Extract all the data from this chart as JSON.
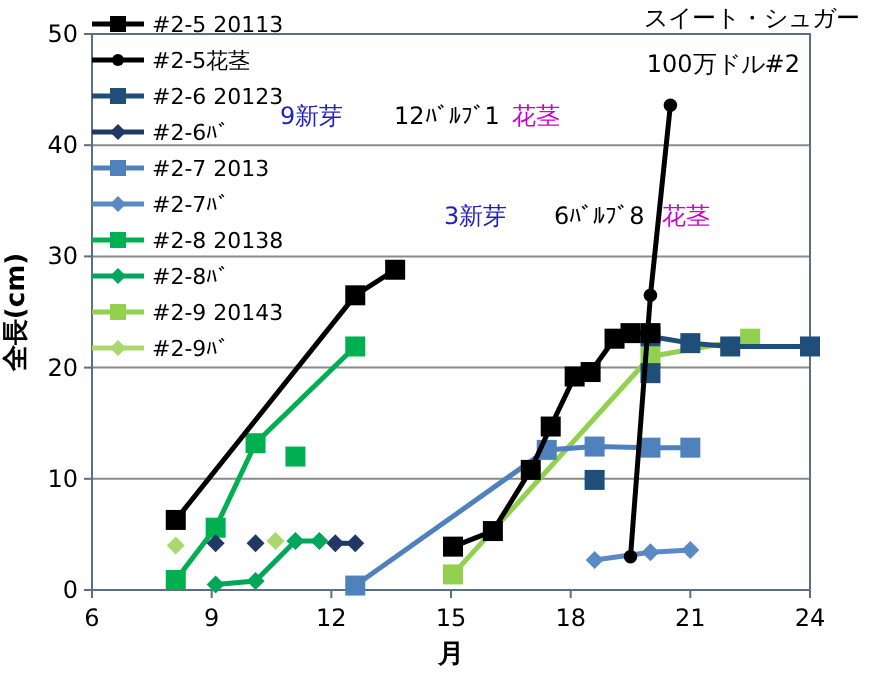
{
  "chart_data": {
    "type": "line",
    "title": "スイート・シュガー",
    "subtitle": "100万ドル#2",
    "xlabel": "月",
    "ylabel": "全長(cm)",
    "xlim": [
      6,
      24
    ],
    "xticks": [
      6,
      9,
      12,
      15,
      18,
      21,
      24
    ],
    "ylim": [
      0,
      50
    ],
    "yticks": [
      0,
      10,
      20,
      30,
      40,
      50
    ],
    "grid": "y",
    "legend": "top left",
    "line_style": "solid",
    "annotations": [
      "9新芽",
      "12ﾊﾞﾙﾌﾞ1",
      "花茎",
      "3新芽",
      "6ﾊﾞﾙﾌﾞ8",
      "花茎"
    ],
    "series": [
      {
        "name": "#2-5 20113",
        "color": "#000000",
        "marker": "square",
        "x": [
          8.1,
          12.6,
          13.6,
          null,
          15.05,
          16.05,
          17.0,
          17.5,
          18.1,
          18.5,
          19.1,
          19.5,
          20.0
        ],
        "values": [
          6.3,
          26.5,
          28.8,
          null,
          3.9,
          5.3,
          10.8,
          14.7,
          19.2,
          19.6,
          22.6,
          23.1,
          23.1
        ]
      },
      {
        "name": "#2-5花茎",
        "color": "#000000",
        "marker": "circle",
        "x": [
          19.5,
          20.0,
          20.5
        ],
        "values": [
          3.0,
          26.5,
          43.6
        ]
      },
      {
        "name": "#2-6 20123",
        "color": "#1f4e79",
        "marker": "square",
        "x": [
          18.6,
          null,
          20.0,
          null,
          20.0,
          21.0,
          22.0,
          24.0
        ],
        "values": [
          9.9,
          null,
          19.5,
          null,
          22.8,
          22.2,
          21.9,
          21.9
        ]
      },
      {
        "name": "#2-6ﾊﾞ",
        "color": "#203864",
        "marker": "diamond",
        "x": [
          9.1,
          null,
          10.1,
          null,
          12.1,
          12.6
        ],
        "values": [
          4.2,
          null,
          4.2,
          null,
          4.2,
          4.2
        ]
      },
      {
        "name": "#2-7 2013",
        "color": "#4f81bd",
        "marker": "square",
        "x": [
          12.6,
          17.4,
          18.6,
          20.0,
          21.0
        ],
        "values": [
          0.4,
          12.6,
          12.9,
          12.8,
          12.8
        ]
      },
      {
        "name": "#2-7ﾊﾞ",
        "color": "#5a8ac6",
        "marker": "diamond",
        "x": [
          18.6,
          20.0,
          21.0
        ],
        "values": [
          2.7,
          3.4,
          3.6
        ]
      },
      {
        "name": "#2-8 20138",
        "color": "#00b050",
        "marker": "square",
        "x": [
          8.1,
          9.1,
          10.1,
          12.6,
          null,
          11.1
        ],
        "values": [
          0.9,
          5.6,
          13.2,
          21.9,
          null,
          12.0
        ]
      },
      {
        "name": "#2-8ﾊﾞ",
        "color": "#00a65a",
        "marker": "diamond",
        "x": [
          9.1,
          10.1,
          11.1,
          11.7
        ],
        "values": [
          0.5,
          0.8,
          4.4,
          4.4
        ]
      },
      {
        "name": "#2-9 20143",
        "color": "#92d050",
        "marker": "square",
        "x": [
          15.05,
          20.0,
          22.5
        ],
        "values": [
          1.4,
          21.0,
          22.6
        ]
      },
      {
        "name": "#2-9ﾊﾞ",
        "color": "#a9d86e",
        "marker": "diamond",
        "x": [
          8.1,
          null,
          10.6
        ],
        "values": [
          4.0,
          null,
          4.4
        ]
      }
    ]
  }
}
